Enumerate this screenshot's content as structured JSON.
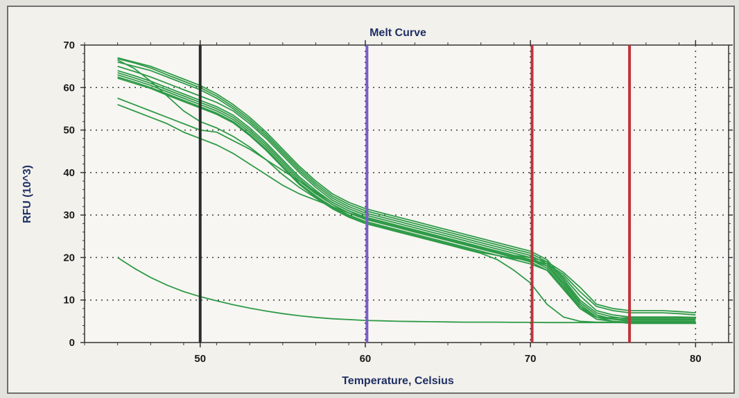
{
  "chart_data": {
    "type": "line",
    "title": "Melt Curve",
    "xlabel": "Temperature, Celsius",
    "ylabel": "RFU (10^3)",
    "xlim": [
      43,
      82
    ],
    "ylim": [
      0,
      70
    ],
    "xticks": [
      50,
      60,
      70,
      80
    ],
    "yticks": [
      0,
      10,
      20,
      30,
      40,
      50,
      60,
      70
    ],
    "grid": true,
    "colors": {
      "series": "#2e9a47",
      "line_50": "#2b2b2b",
      "line_60": "#7a5ec8",
      "line_70": "#c0343c",
      "line_76": "#c0343c",
      "grid": "#3a3a3a"
    },
    "vertical_lines": [
      {
        "x": 50,
        "color": "#2b2b2b"
      },
      {
        "x": 60.1,
        "color": "#7a5ec8"
      },
      {
        "x": 70.1,
        "color": "#c0343c"
      },
      {
        "x": 76,
        "color": "#c0343c"
      }
    ],
    "x": [
      45,
      46,
      47,
      48,
      49,
      50,
      51,
      52,
      53,
      54,
      55,
      56,
      57,
      58,
      59,
      60,
      61,
      62,
      63,
      64,
      65,
      66,
      67,
      68,
      69,
      70,
      71,
      72,
      73,
      74,
      75,
      76,
      77,
      78,
      79,
      80
    ],
    "series": [
      {
        "values": [
          67,
          66,
          65,
          63.5,
          62,
          60.5,
          58.5,
          56,
          53,
          49.5,
          45.5,
          41.5,
          38,
          35,
          33,
          31.5,
          30.5,
          29.5,
          28.5,
          27.5,
          26.5,
          25.5,
          24.5,
          23.5,
          22.5,
          21.5,
          19.5,
          15,
          10,
          7,
          6,
          5.5,
          5.5,
          5.5,
          5.5,
          5.5
        ]
      },
      {
        "values": [
          66.8,
          65.8,
          64.6,
          63,
          61.5,
          60,
          58,
          55.5,
          52.5,
          49,
          45,
          41,
          37.5,
          34.5,
          32.5,
          31,
          30,
          29,
          28,
          27,
          26,
          25,
          24,
          23,
          22,
          21,
          19,
          14.5,
          9.5,
          6.5,
          5.5,
          5,
          5,
          5,
          5,
          5
        ]
      },
      {
        "values": [
          66,
          65,
          64,
          62.5,
          61,
          59.5,
          57.5,
          55,
          52,
          48.5,
          44.5,
          40.5,
          37,
          34,
          32,
          30.5,
          29.5,
          28.5,
          27.5,
          26.5,
          25.5,
          24.5,
          23.5,
          22.5,
          21.5,
          20.5,
          18.5,
          14,
          9,
          6,
          5,
          4.5,
          4.5,
          4.5,
          4.5,
          4.5
        ]
      },
      {
        "values": [
          65,
          63.8,
          62.5,
          61,
          59.5,
          58,
          56.5,
          54.5,
          51.5,
          48,
          44,
          40,
          36.5,
          33.5,
          31.5,
          30,
          29,
          28,
          27,
          26,
          25,
          24,
          23,
          22,
          21,
          20,
          18,
          13.5,
          8.5,
          5.5,
          5,
          4.5,
          4.5,
          4.5,
          4.5,
          4.5
        ]
      },
      {
        "values": [
          64,
          62.8,
          61.5,
          60,
          58.5,
          57,
          55.5,
          53.5,
          50.5,
          47,
          43,
          39,
          35.8,
          33,
          31,
          29.5,
          28.5,
          27.5,
          26.5,
          25.5,
          24.5,
          23.5,
          22.5,
          21.5,
          20.5,
          19.5,
          17.5,
          13,
          8,
          5.5,
          5,
          4.8,
          4.8,
          4.8,
          4.8,
          4.8
        ]
      },
      {
        "values": [
          63.5,
          62.3,
          61,
          59.5,
          58,
          56.5,
          55,
          53,
          50,
          46.5,
          42.5,
          38.5,
          35.3,
          32.5,
          30.5,
          29,
          28,
          27,
          26,
          25,
          24,
          23,
          22,
          21,
          20,
          19,
          17,
          12.5,
          8,
          6,
          5.5,
          5.3,
          5.3,
          5.3,
          5.3,
          5.3
        ]
      },
      {
        "values": [
          63,
          61.8,
          60.5,
          59,
          57.5,
          56,
          54.5,
          52.5,
          49.5,
          46,
          42,
          38,
          35,
          32.5,
          30.5,
          29.2,
          28.2,
          27.2,
          26.2,
          25.2,
          24.2,
          23.2,
          22.2,
          21.2,
          20.2,
          19.2,
          18.5,
          16,
          12,
          8.5,
          7.5,
          7,
          7,
          7,
          6.8,
          6.5
        ]
      },
      {
        "values": [
          62.5,
          61.3,
          60,
          58.5,
          57,
          55.5,
          54,
          52,
          49,
          45.5,
          41.5,
          37.5,
          34.5,
          32,
          30,
          28.5,
          27.5,
          26.5,
          25.5,
          24.5,
          23.5,
          22.5,
          21.5,
          20.5,
          19.5,
          18.5,
          17,
          13,
          8.5,
          6,
          5.8,
          5.8,
          5.8,
          5.8,
          5.8,
          5.8
        ]
      },
      {
        "values": [
          62.2,
          61,
          59.8,
          58.2,
          56.7,
          55.2,
          53.7,
          51.7,
          48.7,
          45.2,
          41.2,
          37.2,
          34.2,
          31.7,
          29.7,
          28.2,
          27.2,
          26.2,
          25.2,
          24.2,
          23.2,
          22.2,
          21.2,
          20.5,
          19.8,
          19.5,
          18.5,
          15.5,
          11,
          7.5,
          6.5,
          6,
          6,
          6,
          6,
          5.9
        ]
      },
      {
        "values": [
          57.5,
          56,
          54.5,
          53,
          51.5,
          50,
          49.5,
          47.5,
          45.5,
          43,
          40.5,
          38,
          35.5,
          33,
          31,
          29.5,
          28.5,
          27.5,
          26.5,
          25.5,
          24.5,
          23.5,
          22.5,
          21.5,
          20.5,
          19.5,
          18,
          14,
          9.5,
          6.5,
          5.5,
          5,
          5,
          5,
          5,
          5
        ]
      },
      {
        "values": [
          56,
          54.5,
          53,
          51.5,
          49.5,
          48,
          46.5,
          44.5,
          42,
          39.5,
          37,
          35,
          33.5,
          32,
          30.5,
          29.5,
          28.5,
          27.5,
          26.5,
          25.5,
          24.5,
          23.5,
          22.5,
          21.5,
          20.5,
          20,
          19,
          16.5,
          13,
          9,
          8,
          7.5,
          7.5,
          7.5,
          7.3,
          7
        ]
      },
      {
        "values": [
          66.5,
          64.5,
          61.5,
          58,
          54.5,
          52,
          50.5,
          48.5,
          46,
          43,
          39.5,
          36.5,
          34,
          31.5,
          29.5,
          28,
          27,
          26,
          25,
          24,
          23,
          22,
          21,
          19.5,
          17,
          14,
          9,
          6,
          5,
          4.8,
          4.8,
          4.8,
          4.8,
          4.8,
          4.8,
          4.8
        ]
      },
      {
        "values": [
          20,
          17.5,
          15.3,
          13.5,
          12,
          10.8,
          9.8,
          8.9,
          8.1,
          7.4,
          6.8,
          6.3,
          5.9,
          5.6,
          5.4,
          5.2,
          5.1,
          5,
          4.95,
          4.9,
          4.85,
          4.8,
          4.8,
          4.8,
          4.75,
          4.75,
          4.7,
          4.7,
          4.7,
          4.7,
          4.7,
          4.7,
          4.7,
          4.7,
          4.7,
          4.7
        ]
      }
    ]
  }
}
